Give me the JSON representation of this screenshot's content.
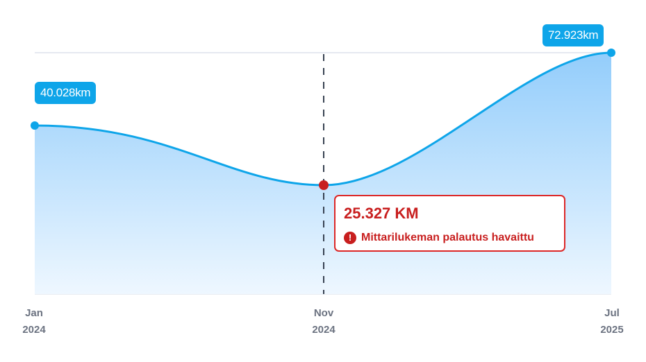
{
  "chart_data": {
    "type": "area",
    "categories": [
      "Jan 2024",
      "Nov 2024",
      "Jul 2025"
    ],
    "values": [
      40.028,
      25.327,
      72.923
    ],
    "unit": "km",
    "data_labels": [
      "40.028km",
      "25.327 KM",
      "72.923km"
    ],
    "x_ticks": [
      {
        "month": "Jan",
        "year": "2024"
      },
      {
        "month": "Nov",
        "year": "2024"
      },
      {
        "month": "Jul",
        "year": "2025"
      }
    ],
    "annotation": {
      "value": "25.327 KM",
      "message": "Mittarilukeman palautus havaittu",
      "icon": "exclamation-circle-icon"
    },
    "colors": {
      "line": "#0ea5e9",
      "fill": "#93cdfb",
      "alert": "#c81e1e",
      "marker_alert": "#c81e1e"
    }
  }
}
